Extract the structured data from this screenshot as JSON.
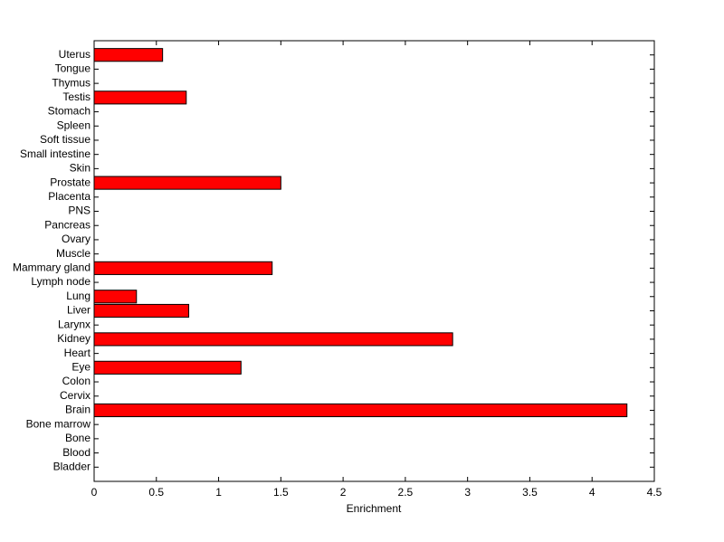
{
  "chart_data": {
    "type": "barh",
    "xlabel": "Enrichment",
    "categories": [
      "Bladder",
      "Blood",
      "Bone",
      "Bone marrow",
      "Brain",
      "Cervix",
      "Colon",
      "Eye",
      "Heart",
      "Kidney",
      "Larynx",
      "Liver",
      "Lung",
      "Lymph node",
      "Mammary gland",
      "Muscle",
      "Ovary",
      "Pancreas",
      "PNS",
      "Placenta",
      "Prostate",
      "Skin",
      "Small intestine",
      "Soft tissue",
      "Spleen",
      "Stomach",
      "Testis",
      "Thymus",
      "Tongue",
      "Uterus"
    ],
    "values": [
      0,
      0,
      0,
      0,
      4.28,
      0,
      0,
      1.18,
      0,
      2.88,
      0,
      0.76,
      0.34,
      0,
      1.43,
      0,
      0,
      0,
      0,
      0,
      1.5,
      0,
      0,
      0,
      0,
      0,
      0.74,
      0,
      0,
      0.55
    ],
    "color": "#ff0000",
    "xlim": [
      0,
      4.5
    ],
    "xticks": [
      0,
      0.5,
      1,
      1.5,
      2,
      2.5,
      3,
      3.5,
      4,
      4.5
    ]
  }
}
